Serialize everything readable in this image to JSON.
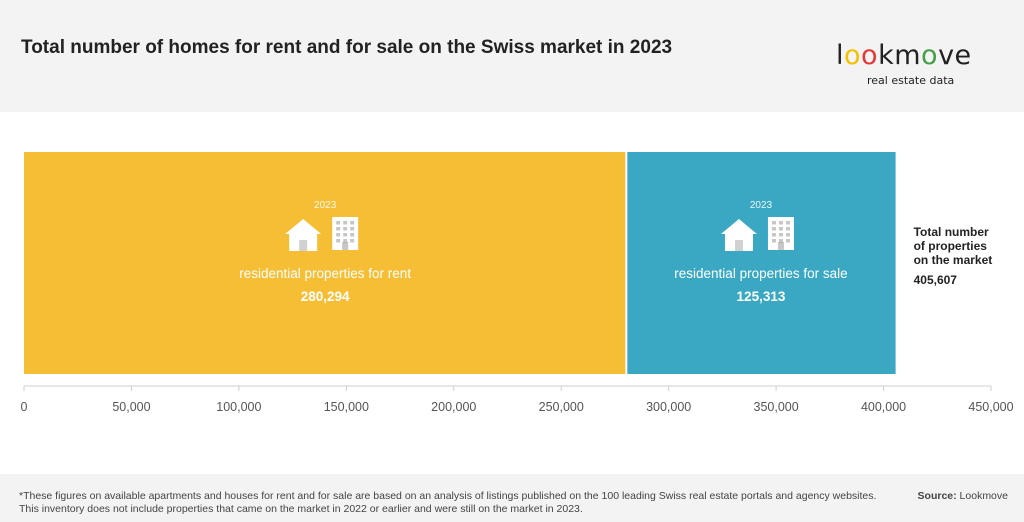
{
  "header": {
    "title": "Total number of homes for rent and for sale on the Swiss market in 2023"
  },
  "logo": {
    "letters": [
      "l",
      "o",
      "o",
      "k",
      "m",
      "o",
      "v",
      "e"
    ],
    "letter_colors": [
      "#222222",
      "#f2c200",
      "#e53935",
      "#222222",
      "#222222",
      "#43a047",
      "#222222",
      "#222222"
    ],
    "tagline": "real estate data"
  },
  "chart_data": {
    "type": "bar",
    "orientation": "horizontal-stacked",
    "series": [
      {
        "name": "residential properties for rent",
        "year_label": "2023",
        "value": 280294,
        "value_label": "280,294",
        "color": "#f5be35",
        "icons": [
          "house-icon",
          "apartment-building-icon"
        ]
      },
      {
        "name": "residential properties for sale",
        "year_label": "2023",
        "value": 125313,
        "value_label": "125,313",
        "color": "#3aa8c3",
        "icons": [
          "house-icon",
          "apartment-building-icon"
        ]
      }
    ],
    "total": {
      "label_lines": [
        "Total number",
        "of properties",
        "on the market"
      ],
      "value": 405607,
      "value_label": "405,607"
    },
    "xlim": [
      0,
      450000
    ],
    "xticks": [
      0,
      50000,
      100000,
      150000,
      200000,
      250000,
      300000,
      350000,
      400000,
      450000
    ],
    "xtick_labels": [
      "0",
      "50,000",
      "100,000",
      "150,000",
      "200,000",
      "250,000",
      "300,000",
      "350,000",
      "400,000",
      "450,000"
    ],
    "grid": false
  },
  "footer": {
    "footnote": "*These figures on available apartments and houses for rent and for sale are based on an analysis of listings published on the 100 leading Swiss real estate portals and agency websites. This inventory does not include properties that came on the market in 2022 or earlier and were still on the market in 2023.",
    "source_label": "Source:",
    "source_value": "Lookmove"
  }
}
